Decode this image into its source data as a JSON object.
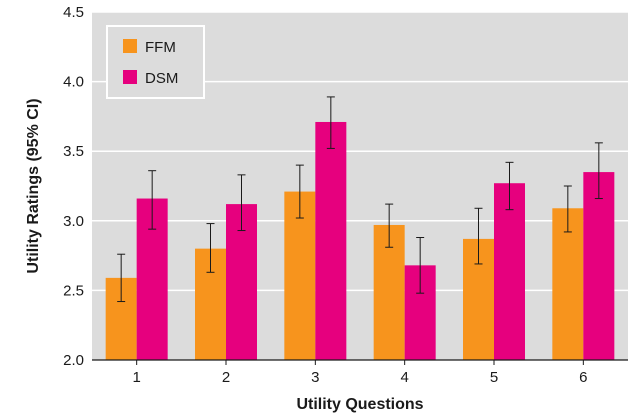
{
  "chart_data": {
    "type": "bar",
    "title": "",
    "xlabel": "Utility Questions",
    "ylabel": "Utility Ratings (95% CI)",
    "ylim": [
      2.0,
      4.5
    ],
    "yticks": [
      "2.0",
      "2.5",
      "3.0",
      "3.5",
      "4.0",
      "4.5"
    ],
    "categories": [
      "1",
      "2",
      "3",
      "4",
      "5",
      "6"
    ],
    "grid": "horizontal",
    "legend_position": "top-left",
    "series": [
      {
        "name": "FFM",
        "color": "#f7941d",
        "values": [
          2.59,
          2.8,
          3.21,
          2.97,
          2.87,
          3.09
        ],
        "ci_low": [
          2.42,
          2.63,
          3.02,
          2.81,
          2.69,
          2.92
        ],
        "ci_high": [
          2.76,
          2.98,
          3.4,
          3.12,
          3.09,
          3.25
        ]
      },
      {
        "name": "DSM",
        "color": "#e6007e",
        "values": [
          3.16,
          3.12,
          3.71,
          2.68,
          3.27,
          3.35
        ],
        "ci_low": [
          2.94,
          2.93,
          3.52,
          2.48,
          3.08,
          3.16
        ],
        "ci_high": [
          3.36,
          3.33,
          3.89,
          2.88,
          3.42,
          3.56
        ]
      }
    ],
    "plot_background": "#dcdcdc",
    "gridline_color": "#ffffff"
  }
}
